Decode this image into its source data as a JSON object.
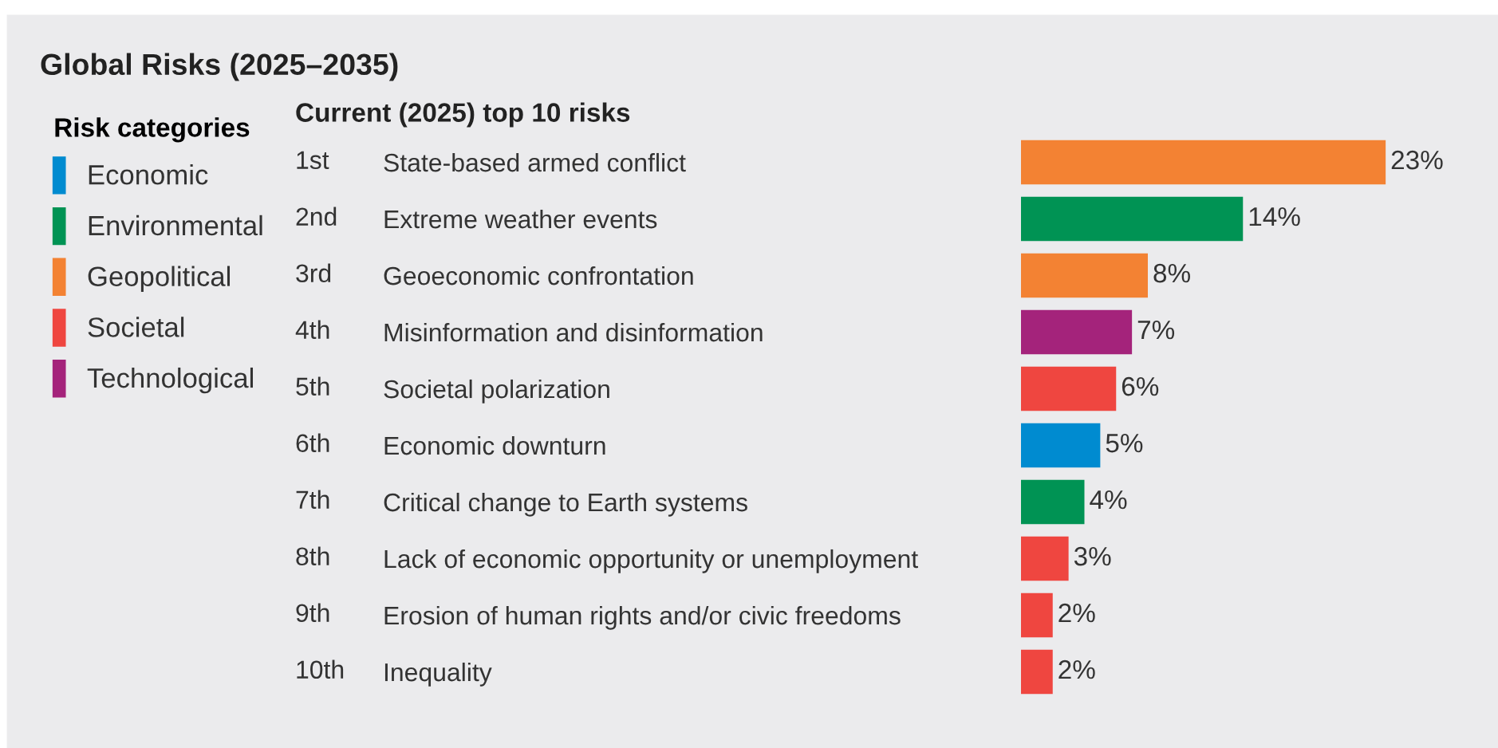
{
  "chart_data": {
    "type": "bar",
    "orientation": "horizontal",
    "title": "Global Risks (2025–2035)",
    "subtitle": "Current (2025) top 10 risks",
    "legend_title": "Risk categories",
    "legend": "left",
    "tick_labels": "y",
    "categories": [
      "State-based armed conflict",
      "Extreme weather events",
      "Geoeconomic confrontation",
      "Misinformation and disinformation",
      "Societal polarization",
      "Economic downturn",
      "Critical change to Earth systems",
      "Lack of economic opportunity or unemployment",
      "Erosion of human rights and/or civic freedoms",
      "Inequality"
    ],
    "annotations": [
      "1st",
      "2nd",
      "3rd",
      "4th",
      "5th",
      "6th",
      "7th",
      "8th",
      "9th",
      "10th"
    ],
    "series": [
      {
        "name": "Economic",
        "color": "#008bd0",
        "values": [
          null,
          null,
          null,
          null,
          null,
          5,
          null,
          null,
          null,
          null
        ],
        "value_labels": [
          null,
          null,
          null,
          null,
          null,
          "5%",
          null,
          null,
          null,
          null
        ]
      },
      {
        "name": "Environmental",
        "color": "#009354",
        "values": [
          null,
          14,
          null,
          null,
          null,
          null,
          4,
          null,
          null,
          null
        ],
        "value_labels": [
          null,
          "14%",
          null,
          null,
          null,
          null,
          "4%",
          null,
          null,
          null
        ]
      },
      {
        "name": "Geopolitical",
        "color": "#f38233",
        "values": [
          23,
          null,
          8,
          null,
          null,
          null,
          null,
          null,
          null,
          null
        ],
        "value_labels": [
          "23%",
          null,
          "8%",
          null,
          null,
          null,
          null,
          null,
          null,
          null
        ]
      },
      {
        "name": "Societal",
        "color": "#ef4640",
        "values": [
          null,
          null,
          null,
          null,
          6,
          null,
          null,
          3,
          2,
          2
        ],
        "value_labels": [
          null,
          null,
          null,
          null,
          "6%",
          null,
          null,
          "3%",
          "2%",
          "2%"
        ]
      },
      {
        "name": "Technological",
        "color": "#a4237b",
        "values": [
          null,
          null,
          null,
          7,
          null,
          null,
          null,
          null,
          null,
          null
        ],
        "value_labels": [
          null,
          null,
          null,
          "7%",
          null,
          null,
          null,
          null,
          null,
          null
        ]
      }
    ]
  }
}
